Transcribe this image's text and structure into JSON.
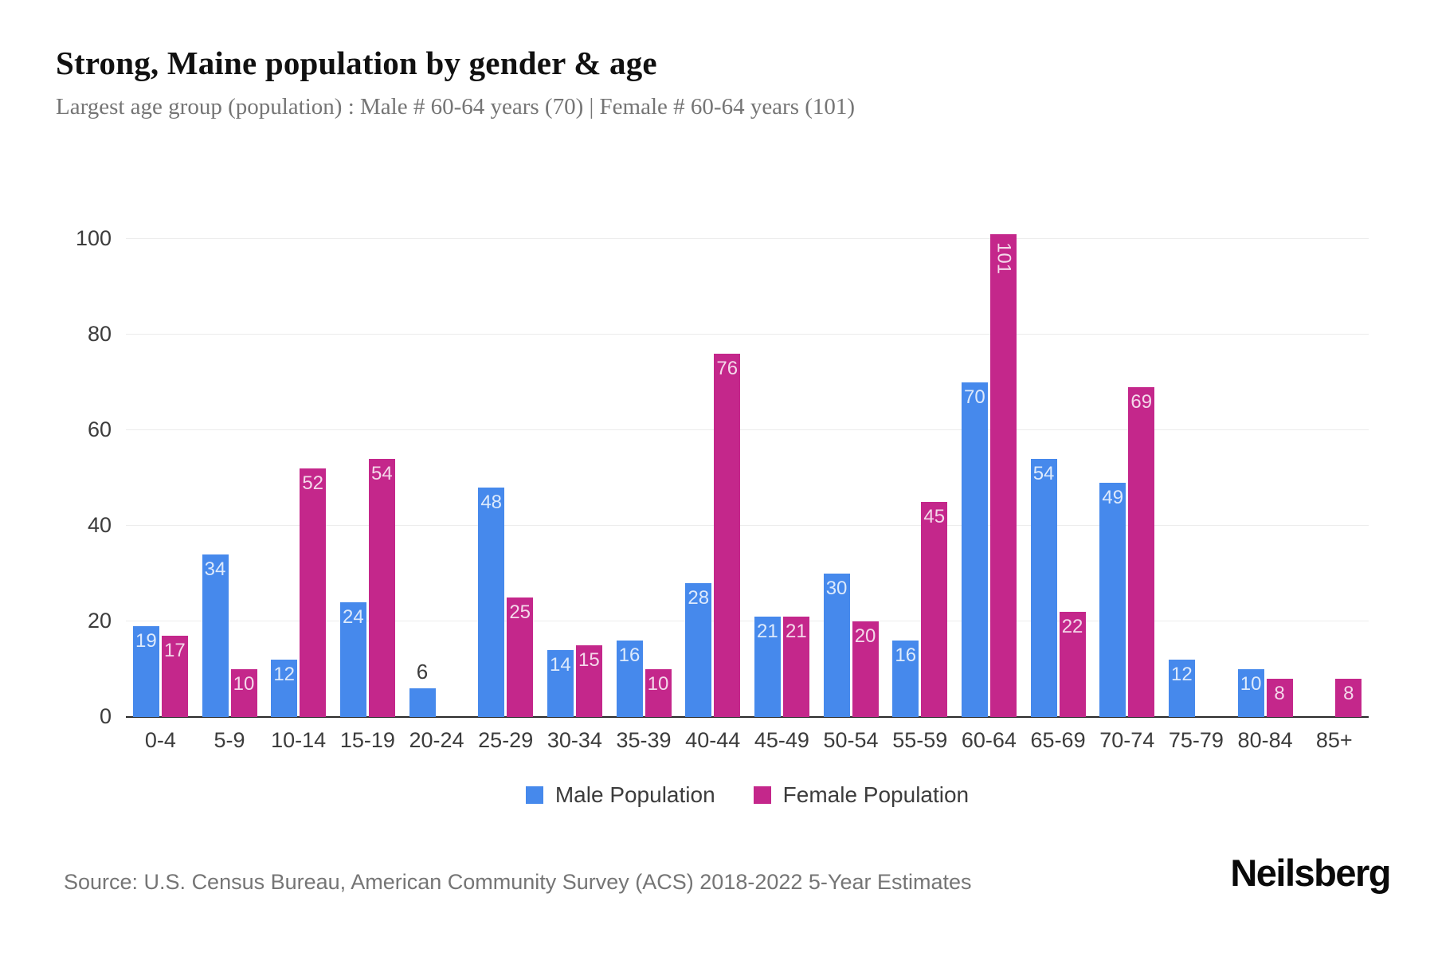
{
  "header": {
    "title": "Strong, Maine population by gender & age",
    "subtitle": "Largest age group (population) : Male # 60-64 years (70) | Female # 60-64 years (101)"
  },
  "chart_data": {
    "type": "bar",
    "title": "Strong, Maine population by gender & age",
    "categories": [
      "0-4",
      "5-9",
      "10-14",
      "15-19",
      "20-24",
      "25-29",
      "30-34",
      "35-39",
      "40-44",
      "45-49",
      "50-54",
      "55-59",
      "60-64",
      "65-69",
      "70-74",
      "75-79",
      "80-84",
      "85+"
    ],
    "series": [
      {
        "name": "Male Population",
        "color": "#4689EC",
        "values": [
          19,
          34,
          12,
          24,
          6,
          48,
          14,
          16,
          28,
          21,
          30,
          16,
          70,
          54,
          49,
          12,
          10,
          null
        ]
      },
      {
        "name": "Female Population",
        "color": "#C4278B",
        "values": [
          17,
          10,
          52,
          54,
          null,
          25,
          15,
          10,
          76,
          21,
          20,
          45,
          101,
          22,
          69,
          null,
          8,
          8
        ]
      }
    ],
    "xlabel": "",
    "ylabel": "",
    "ylim": [
      0,
      100
    ],
    "yticks": [
      0,
      20,
      40,
      60,
      80,
      100
    ],
    "grid": true,
    "legend_position": "bottom",
    "bar_value_labels": true,
    "colors": {
      "grid": "#ececec",
      "axis_line": "#2b2b2b",
      "tick_text": "#3c3c3c",
      "label_inside": "rgba(255,255,255,0.82)",
      "label_outside": "#3c3c3c"
    }
  },
  "footer": {
    "source": "Source: U.S. Census Bureau, American Community Survey (ACS) 2018-2022 5-Year Estimates",
    "brand": "Neilsberg"
  }
}
